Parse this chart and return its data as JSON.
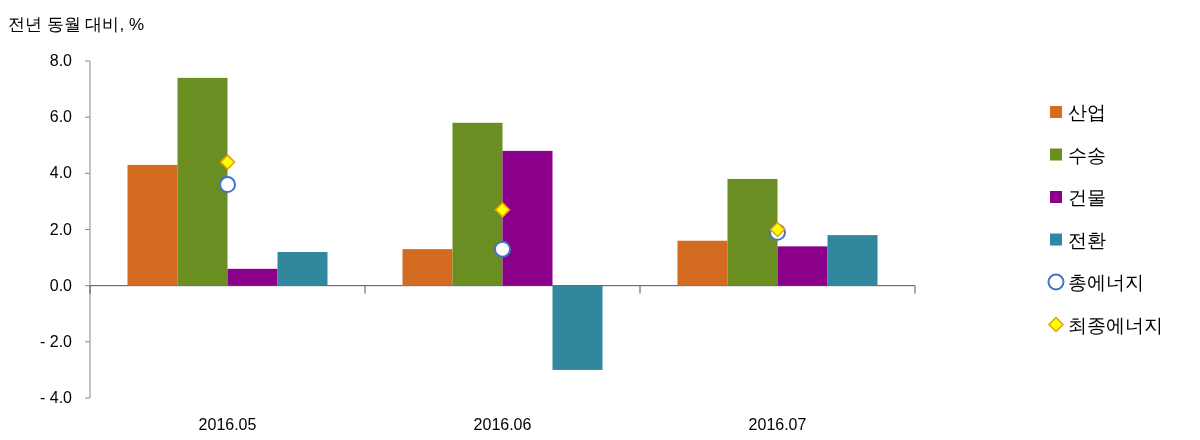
{
  "chart_data": {
    "type": "bar",
    "ylabel": "전년 동월 대비, %",
    "categories": [
      "2016.05",
      "2016.06",
      "2016.07"
    ],
    "series": [
      {
        "name": "산업",
        "color": "#d36b21",
        "values": [
          4.3,
          1.3,
          1.6
        ]
      },
      {
        "name": "수송",
        "color": "#6b8e23",
        "values": [
          7.4,
          5.8,
          3.8
        ]
      },
      {
        "name": "건물",
        "color": "#8b008b",
        "values": [
          0.6,
          4.8,
          1.4
        ]
      },
      {
        "name": "전환",
        "color": "#31879b",
        "values": [
          1.2,
          -3.0,
          1.8
        ]
      },
      {
        "name": "총에너지",
        "type": "scatter",
        "marker": "circle",
        "color": "#4472c4",
        "values": [
          3.6,
          1.3,
          1.9
        ]
      },
      {
        "name": "최종에너지",
        "type": "scatter",
        "marker": "diamond",
        "color": "#ffff00",
        "values": [
          4.4,
          2.7,
          2.0
        ]
      }
    ],
    "ylim": [
      -4,
      8
    ],
    "yticks": [
      {
        "value": -4,
        "label": "- 4.0"
      },
      {
        "value": -2,
        "label": "- 2.0"
      },
      {
        "value": 0,
        "label": "0.0"
      },
      {
        "value": 2,
        "label": "2.0"
      },
      {
        "value": 4,
        "label": "4.0"
      },
      {
        "value": 6,
        "label": "6.0"
      },
      {
        "value": 8,
        "label": "8.0"
      }
    ],
    "legend": "right"
  }
}
